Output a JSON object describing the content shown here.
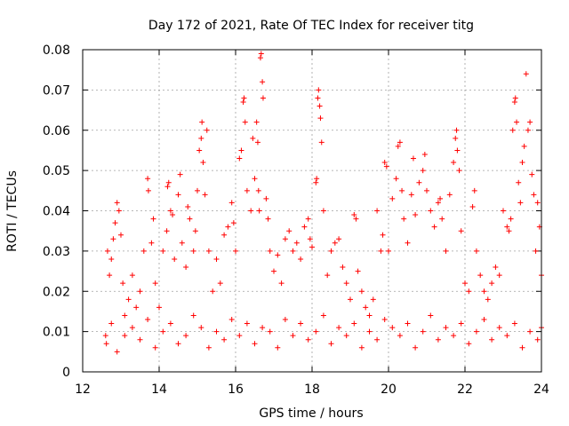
{
  "chart_data": {
    "type": "scatter",
    "title": "Day 172 of 2021, Rate Of TEC Index for receiver titg",
    "xlabel": "GPS time / hours",
    "ylabel": "ROTI / TECUs",
    "xlim": [
      12,
      24
    ],
    "ylim": [
      0,
      0.08
    ],
    "x_ticks": [
      12,
      14,
      16,
      18,
      20,
      22,
      24
    ],
    "x_tick_labels": [
      "12",
      "14",
      "16",
      "18",
      "20",
      "22",
      "24"
    ],
    "y_ticks": [
      0,
      0.01,
      0.02,
      0.03,
      0.04,
      0.05,
      0.06,
      0.07,
      0.08
    ],
    "y_tick_labels": [
      "0",
      "0.01",
      "0.02",
      "0.03",
      "0.04",
      "0.05",
      "0.06",
      "0.07",
      "0.08"
    ],
    "grid": true,
    "marker": "+",
    "series": [
      {
        "name": "ROTI",
        "color": "#ff0000",
        "points": [
          [
            12.6,
            0.009
          ],
          [
            12.65,
            0.03
          ],
          [
            12.7,
            0.024
          ],
          [
            12.75,
            0.028
          ],
          [
            12.8,
            0.033
          ],
          [
            12.85,
            0.037
          ],
          [
            12.9,
            0.042
          ],
          [
            12.95,
            0.04
          ],
          [
            13.0,
            0.034
          ],
          [
            13.05,
            0.022
          ],
          [
            13.1,
            0.014
          ],
          [
            13.2,
            0.018
          ],
          [
            13.3,
            0.024
          ],
          [
            13.4,
            0.016
          ],
          [
            13.5,
            0.02
          ],
          [
            13.6,
            0.03
          ],
          [
            13.7,
            0.048
          ],
          [
            13.72,
            0.045
          ],
          [
            13.8,
            0.032
          ],
          [
            13.85,
            0.038
          ],
          [
            13.9,
            0.022
          ],
          [
            14.0,
            0.016
          ],
          [
            14.1,
            0.03
          ],
          [
            14.2,
            0.035
          ],
          [
            14.22,
            0.046
          ],
          [
            14.25,
            0.047
          ],
          [
            14.3,
            0.04
          ],
          [
            14.35,
            0.039
          ],
          [
            14.4,
            0.028
          ],
          [
            14.5,
            0.044
          ],
          [
            14.55,
            0.049
          ],
          [
            14.6,
            0.032
          ],
          [
            14.7,
            0.026
          ],
          [
            14.75,
            0.041
          ],
          [
            14.8,
            0.038
          ],
          [
            14.9,
            0.03
          ],
          [
            14.95,
            0.035
          ],
          [
            15.0,
            0.045
          ],
          [
            15.05,
            0.055
          ],
          [
            15.1,
            0.058
          ],
          [
            15.12,
            0.062
          ],
          [
            15.15,
            0.052
          ],
          [
            15.2,
            0.044
          ],
          [
            15.25,
            0.06
          ],
          [
            15.3,
            0.03
          ],
          [
            15.4,
            0.02
          ],
          [
            15.5,
            0.028
          ],
          [
            15.6,
            0.022
          ],
          [
            15.7,
            0.034
          ],
          [
            15.8,
            0.036
          ],
          [
            15.9,
            0.042
          ],
          [
            15.95,
            0.037
          ],
          [
            16.0,
            0.03
          ],
          [
            16.1,
            0.053
          ],
          [
            16.15,
            0.055
          ],
          [
            16.2,
            0.067
          ],
          [
            16.22,
            0.068
          ],
          [
            16.25,
            0.062
          ],
          [
            16.3,
            0.045
          ],
          [
            16.4,
            0.04
          ],
          [
            16.45,
            0.058
          ],
          [
            16.5,
            0.048
          ],
          [
            16.55,
            0.062
          ],
          [
            16.58,
            0.057
          ],
          [
            16.6,
            0.045
          ],
          [
            16.62,
            0.04
          ],
          [
            16.65,
            0.078
          ],
          [
            16.67,
            0.079
          ],
          [
            16.7,
            0.072
          ],
          [
            16.72,
            0.068
          ],
          [
            16.8,
            0.043
          ],
          [
            16.85,
            0.038
          ],
          [
            16.9,
            0.03
          ],
          [
            17.0,
            0.025
          ],
          [
            17.1,
            0.029
          ],
          [
            17.2,
            0.022
          ],
          [
            17.3,
            0.033
          ],
          [
            17.4,
            0.035
          ],
          [
            17.5,
            0.03
          ],
          [
            17.6,
            0.032
          ],
          [
            17.7,
            0.028
          ],
          [
            17.8,
            0.036
          ],
          [
            17.9,
            0.038
          ],
          [
            17.95,
            0.033
          ],
          [
            18.0,
            0.031
          ],
          [
            18.1,
            0.047
          ],
          [
            18.12,
            0.048
          ],
          [
            18.15,
            0.068
          ],
          [
            18.17,
            0.07
          ],
          [
            18.2,
            0.066
          ],
          [
            18.22,
            0.063
          ],
          [
            18.25,
            0.057
          ],
          [
            18.3,
            0.04
          ],
          [
            18.4,
            0.024
          ],
          [
            18.5,
            0.03
          ],
          [
            18.6,
            0.032
          ],
          [
            18.7,
            0.033
          ],
          [
            18.8,
            0.026
          ],
          [
            18.9,
            0.022
          ],
          [
            19.0,
            0.018
          ],
          [
            19.1,
            0.039
          ],
          [
            19.15,
            0.038
          ],
          [
            19.2,
            0.025
          ],
          [
            19.3,
            0.02
          ],
          [
            19.4,
            0.016
          ],
          [
            19.5,
            0.014
          ],
          [
            19.6,
            0.018
          ],
          [
            19.7,
            0.04
          ],
          [
            19.8,
            0.03
          ],
          [
            19.85,
            0.034
          ],
          [
            19.9,
            0.052
          ],
          [
            19.95,
            0.051
          ],
          [
            20.0,
            0.03
          ],
          [
            20.1,
            0.043
          ],
          [
            20.2,
            0.048
          ],
          [
            20.25,
            0.056
          ],
          [
            20.3,
            0.057
          ],
          [
            20.35,
            0.045
          ],
          [
            20.4,
            0.038
          ],
          [
            20.5,
            0.032
          ],
          [
            20.6,
            0.044
          ],
          [
            20.65,
            0.053
          ],
          [
            20.7,
            0.039
          ],
          [
            20.8,
            0.047
          ],
          [
            20.9,
            0.05
          ],
          [
            20.95,
            0.054
          ],
          [
            21.0,
            0.045
          ],
          [
            21.1,
            0.04
          ],
          [
            21.2,
            0.036
          ],
          [
            21.3,
            0.042
          ],
          [
            21.35,
            0.043
          ],
          [
            21.4,
            0.038
          ],
          [
            21.5,
            0.03
          ],
          [
            21.6,
            0.044
          ],
          [
            21.7,
            0.052
          ],
          [
            21.75,
            0.058
          ],
          [
            21.78,
            0.06
          ],
          [
            21.8,
            0.055
          ],
          [
            21.85,
            0.05
          ],
          [
            21.9,
            0.035
          ],
          [
            22.0,
            0.022
          ],
          [
            22.1,
            0.02
          ],
          [
            22.2,
            0.041
          ],
          [
            22.25,
            0.045
          ],
          [
            22.3,
            0.03
          ],
          [
            22.4,
            0.024
          ],
          [
            22.5,
            0.02
          ],
          [
            22.6,
            0.018
          ],
          [
            22.7,
            0.022
          ],
          [
            22.8,
            0.026
          ],
          [
            22.9,
            0.024
          ],
          [
            23.0,
            0.04
          ],
          [
            23.1,
            0.036
          ],
          [
            23.15,
            0.035
          ],
          [
            23.2,
            0.038
          ],
          [
            23.25,
            0.06
          ],
          [
            23.3,
            0.067
          ],
          [
            23.32,
            0.068
          ],
          [
            23.35,
            0.062
          ],
          [
            23.4,
            0.047
          ],
          [
            23.45,
            0.042
          ],
          [
            23.5,
            0.052
          ],
          [
            23.55,
            0.056
          ],
          [
            23.6,
            0.074
          ],
          [
            23.65,
            0.06
          ],
          [
            23.7,
            0.062
          ],
          [
            23.75,
            0.049
          ],
          [
            23.8,
            0.044
          ],
          [
            23.85,
            0.03
          ],
          [
            23.9,
            0.042
          ],
          [
            23.95,
            0.036
          ],
          [
            24.0,
            0.024
          ],
          [
            12.62,
            0.007
          ],
          [
            12.75,
            0.012
          ],
          [
            12.9,
            0.005
          ],
          [
            13.1,
            0.009
          ],
          [
            13.3,
            0.011
          ],
          [
            13.5,
            0.008
          ],
          [
            13.7,
            0.013
          ],
          [
            13.9,
            0.006
          ],
          [
            14.1,
            0.01
          ],
          [
            14.3,
            0.012
          ],
          [
            14.5,
            0.007
          ],
          [
            14.7,
            0.009
          ],
          [
            14.9,
            0.014
          ],
          [
            15.1,
            0.011
          ],
          [
            15.3,
            0.006
          ],
          [
            15.5,
            0.01
          ],
          [
            15.7,
            0.008
          ],
          [
            15.9,
            0.013
          ],
          [
            16.1,
            0.009
          ],
          [
            16.3,
            0.012
          ],
          [
            16.5,
            0.007
          ],
          [
            16.7,
            0.011
          ],
          [
            16.9,
            0.01
          ],
          [
            17.1,
            0.006
          ],
          [
            17.3,
            0.013
          ],
          [
            17.5,
            0.009
          ],
          [
            17.7,
            0.012
          ],
          [
            17.9,
            0.008
          ],
          [
            18.1,
            0.01
          ],
          [
            18.3,
            0.014
          ],
          [
            18.5,
            0.007
          ],
          [
            18.7,
            0.011
          ],
          [
            18.9,
            0.009
          ],
          [
            19.1,
            0.012
          ],
          [
            19.3,
            0.006
          ],
          [
            19.5,
            0.01
          ],
          [
            19.7,
            0.008
          ],
          [
            19.9,
            0.013
          ],
          [
            20.1,
            0.011
          ],
          [
            20.3,
            0.009
          ],
          [
            20.5,
            0.012
          ],
          [
            20.7,
            0.006
          ],
          [
            20.9,
            0.01
          ],
          [
            21.1,
            0.014
          ],
          [
            21.3,
            0.008
          ],
          [
            21.5,
            0.011
          ],
          [
            21.7,
            0.009
          ],
          [
            21.9,
            0.012
          ],
          [
            22.1,
            0.007
          ],
          [
            22.3,
            0.01
          ],
          [
            22.5,
            0.013
          ],
          [
            22.7,
            0.008
          ],
          [
            22.9,
            0.011
          ],
          [
            23.1,
            0.009
          ],
          [
            23.3,
            0.012
          ],
          [
            23.5,
            0.006
          ],
          [
            23.7,
            0.01
          ],
          [
            23.9,
            0.008
          ],
          [
            24.0,
            0.011
          ]
        ]
      }
    ]
  }
}
